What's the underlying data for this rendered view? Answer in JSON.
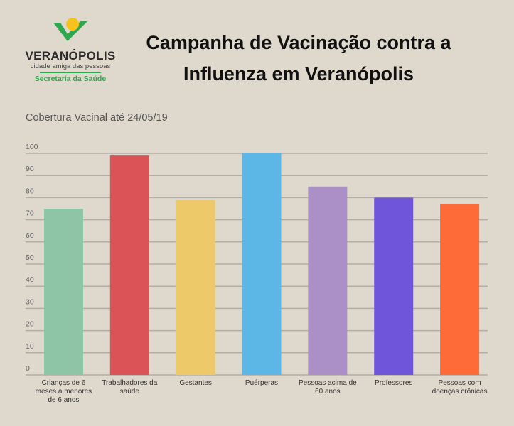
{
  "logo": {
    "name": "VERANÓPOLIS",
    "tagline": "cidade amiga das pessoas",
    "department": "Secretaria da Saúde"
  },
  "title_lines": [
    "Campanha de Vacinação contra a",
    "Influenza em Veranópolis"
  ],
  "chart_data": {
    "type": "bar",
    "title": "Campanha de Vacinação contra a Influenza em Veranópolis",
    "subtitle": "Cobertura Vacinal até 24/05/19",
    "categories": [
      [
        "Crianças de 6",
        "meses a menores",
        "de 6 anos"
      ],
      [
        "Trabalhadores da",
        "saúde"
      ],
      [
        "Gestantes"
      ],
      [
        "Puérperas"
      ],
      [
        "Pessoas acima de",
        "60 anos"
      ],
      [
        "Professores"
      ],
      [
        "Pessoas com",
        "doenças crônicas"
      ]
    ],
    "values": [
      75,
      99,
      79,
      100,
      85,
      80,
      77
    ],
    "colors": [
      "#8ec5a6",
      "#dc5357",
      "#eec96a",
      "#5db7e6",
      "#aa90c6",
      "#6e55d9",
      "#fe6a38"
    ],
    "ylim": [
      0,
      100
    ],
    "yticks": [
      0,
      10,
      20,
      30,
      40,
      50,
      60,
      70,
      80,
      90,
      100
    ],
    "grid": true,
    "xlabel": "",
    "ylabel": ""
  }
}
